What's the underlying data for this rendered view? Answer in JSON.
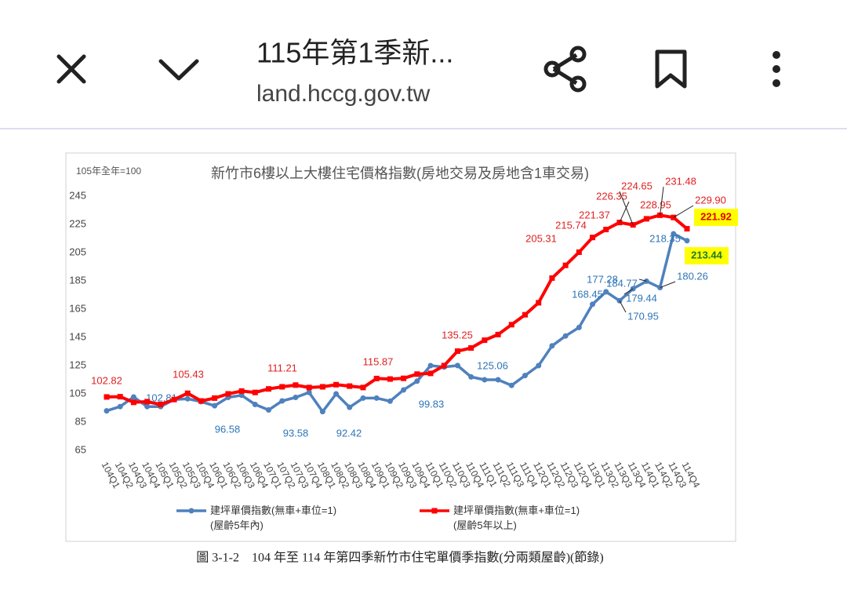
{
  "header": {
    "title": "115年第1季新...",
    "url": "land.hccg.gov.tw"
  },
  "caption": "圖 3-1-2　104 年至 114 年第四季新竹市住宅單價季指數(分兩類屋齡)(節錄)",
  "chart_data": {
    "type": "line",
    "title": "新竹市6樓以上大樓住宅價格指數(房地交易及房地含1車交易)",
    "subtitle": "105年全年=100",
    "categories": [
      "104Q1",
      "104Q2",
      "104Q3",
      "104Q4",
      "105Q1",
      "105Q2",
      "105Q3",
      "105Q4",
      "106Q1",
      "106Q2",
      "106Q3",
      "106Q4",
      "107Q1",
      "107Q2",
      "107Q3",
      "107Q4",
      "108Q1",
      "108Q2",
      "108Q3",
      "108Q4",
      "109Q1",
      "109Q2",
      "109Q3",
      "109Q4",
      "110Q1",
      "110Q2",
      "110Q3",
      "110Q4",
      "111Q1",
      "111Q2",
      "111Q3",
      "111Q4",
      "112Q1",
      "112Q2",
      "112Q3",
      "112Q4",
      "113Q1",
      "113Q2",
      "113Q3",
      "113Q4",
      "114Q1",
      "114Q2",
      "114Q3",
      "114Q4"
    ],
    "ylim": [
      65,
      255
    ],
    "yticks": [
      65,
      85,
      105,
      125,
      145,
      165,
      185,
      205,
      225,
      245
    ],
    "grid": false,
    "series": [
      {
        "name": "建坪單價指數(無車+車位=1)\n(屋齡5年內)",
        "color": "#4f81bd",
        "label_color": "#2e75b6",
        "marker": "circle",
        "values": [
          93,
          96,
          102.81,
          96,
          96,
          101,
          101.5,
          99.5,
          96.58,
          102.5,
          104,
          97.5,
          93.58,
          100,
          102.5,
          106,
          92.42,
          105,
          95.5,
          102,
          102,
          99.83,
          107.8,
          114,
          125,
          124,
          125.06,
          117,
          115,
          115,
          111,
          118,
          125,
          139,
          146,
          152,
          168.45,
          177.28,
          170.95,
          179.44,
          184.77,
          180.26,
          218.35,
          213.44
        ],
        "value_labels": [
          null,
          null,
          "102.81",
          null,
          null,
          null,
          null,
          null,
          "96.58",
          null,
          null,
          null,
          "93.58",
          null,
          null,
          null,
          "92.42",
          null,
          null,
          null,
          null,
          "99.83",
          null,
          null,
          null,
          null,
          "125.06",
          null,
          null,
          null,
          null,
          null,
          null,
          null,
          null,
          null,
          "168.45",
          "177.28",
          "170.95",
          "179.44",
          "184.77",
          "180.26",
          "218.35",
          "213.44"
        ]
      },
      {
        "name": "建坪單價指數(無車+車位=1)\n(屋齡5年以上)",
        "color": "#ff0000",
        "label_color": "#e02020",
        "marker": "square",
        "values": [
          102.82,
          103,
          99,
          99.5,
          97.5,
          101,
          105.43,
          100,
          102,
          105,
          107,
          106,
          108.5,
          110,
          111.21,
          109.5,
          110,
          111.5,
          110.5,
          109.5,
          115.87,
          115.5,
          116,
          119,
          119.5,
          125,
          135.25,
          137.5,
          143,
          147,
          154,
          161,
          169.5,
          187,
          196,
          205.31,
          215.74,
          221.37,
          226.35,
          224.65,
          228.95,
          231.48,
          229.9,
          221.92
        ],
        "value_labels": [
          "102.82",
          null,
          null,
          null,
          null,
          null,
          "105.43",
          null,
          null,
          null,
          null,
          null,
          null,
          null,
          "111.21",
          null,
          null,
          null,
          null,
          null,
          "115.87",
          null,
          null,
          null,
          null,
          null,
          "135.25",
          null,
          null,
          null,
          null,
          null,
          null,
          null,
          null,
          "205.31",
          "215.74",
          "221.37",
          "226.35",
          "224.65",
          "228.95",
          "231.48",
          "229.90",
          "221.92"
        ]
      }
    ]
  }
}
